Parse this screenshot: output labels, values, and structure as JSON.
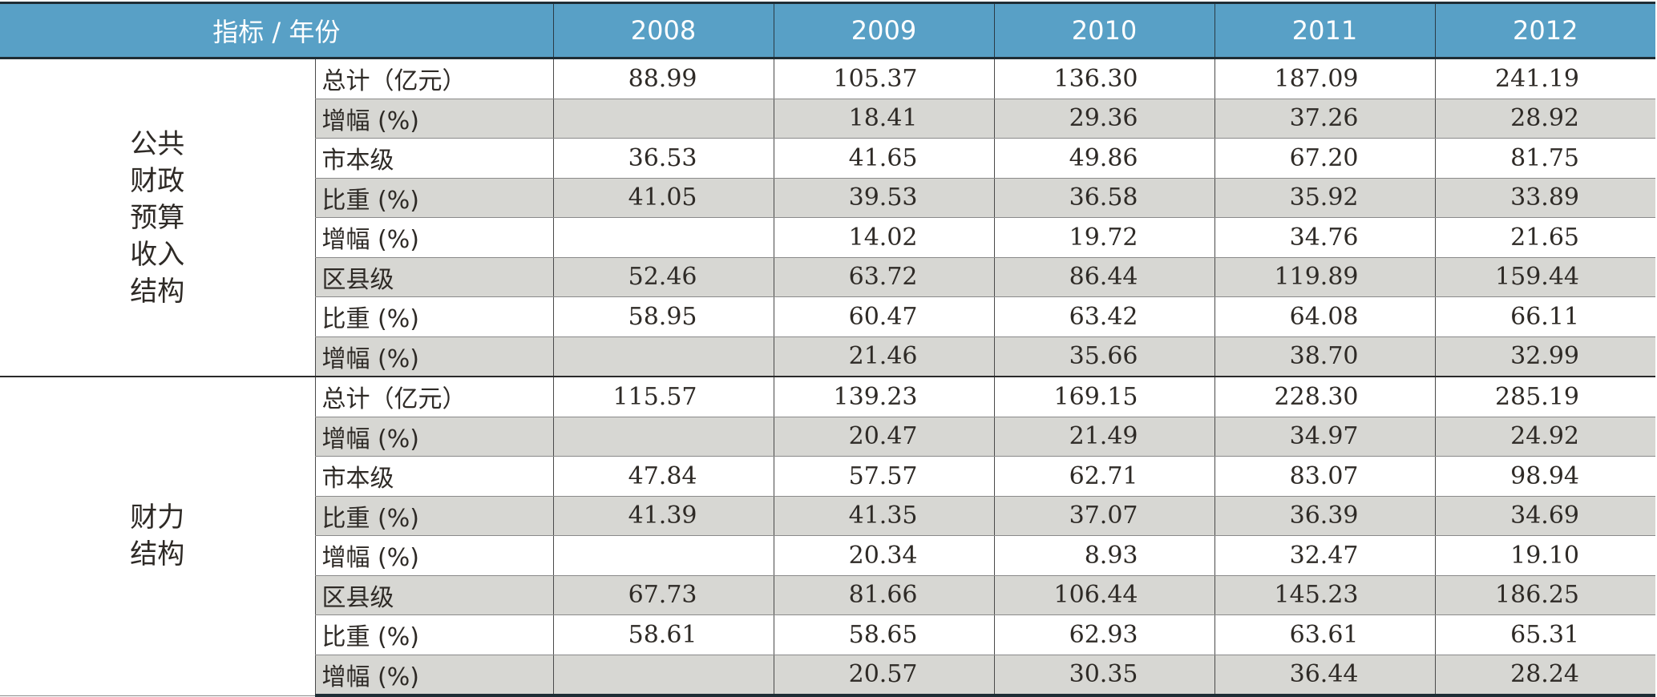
{
  "header": {
    "corner_label": "指标 / 年份",
    "years": [
      "2008",
      "2009",
      "2010",
      "2011",
      "2012"
    ]
  },
  "sections": [
    {
      "group_lines": [
        "公共",
        "财政",
        "预算",
        "收入",
        "结构"
      ],
      "rows": [
        {
          "label": "总计（亿元）",
          "values": [
            "88.99",
            "105.37",
            "136.30",
            "187.09",
            "241.19"
          ]
        },
        {
          "label": "增幅 (%)",
          "values": [
            "",
            "18.41",
            "29.36",
            "37.26",
            "28.92"
          ]
        },
        {
          "label": "市本级",
          "values": [
            "36.53",
            "41.65",
            "49.86",
            "67.20",
            "81.75"
          ]
        },
        {
          "label": "比重 (%)",
          "values": [
            "41.05",
            "39.53",
            "36.58",
            "35.92",
            "33.89"
          ]
        },
        {
          "label": "增幅 (%)",
          "values": [
            "",
            "14.02",
            "19.72",
            "34.76",
            "21.65"
          ]
        },
        {
          "label": "区县级",
          "values": [
            "52.46",
            "63.72",
            "86.44",
            "119.89",
            "159.44"
          ]
        },
        {
          "label": "比重 (%)",
          "values": [
            "58.95",
            "60.47",
            "63.42",
            "64.08",
            "66.11"
          ]
        },
        {
          "label": "增幅 (%)",
          "values": [
            "",
            "21.46",
            "35.66",
            "38.70",
            "32.99"
          ]
        }
      ]
    },
    {
      "group_lines": [
        "财力",
        "结构"
      ],
      "rows": [
        {
          "label": "总计（亿元）",
          "values": [
            "115.57",
            "139.23",
            "169.15",
            "228.30",
            "285.19"
          ]
        },
        {
          "label": "增幅 (%)",
          "values": [
            "",
            "20.47",
            "21.49",
            "34.97",
            "24.92"
          ]
        },
        {
          "label": "市本级",
          "values": [
            "47.84",
            "57.57",
            "62.71",
            "83.07",
            "98.94"
          ]
        },
        {
          "label": "比重 (%)",
          "values": [
            "41.39",
            "41.35",
            "37.07",
            "36.39",
            "34.69"
          ]
        },
        {
          "label": "增幅 (%)",
          "values": [
            "",
            "20.34",
            "8.93",
            "32.47",
            "19.10"
          ]
        },
        {
          "label": "区县级",
          "values": [
            "67.73",
            "81.66",
            "106.44",
            "145.23",
            "186.25"
          ]
        },
        {
          "label": "比重 (%)",
          "values": [
            "58.61",
            "58.65",
            "62.93",
            "63.61",
            "65.31"
          ]
        },
        {
          "label": "增幅 (%)",
          "values": [
            "",
            "20.57",
            "30.35",
            "36.44",
            "28.24"
          ]
        }
      ]
    }
  ],
  "colors": {
    "header_bg": "#58a0c6",
    "header_text": "#ffffff",
    "shaded_row_bg": "#d7d7d3",
    "body_text": "#2e2a26"
  }
}
